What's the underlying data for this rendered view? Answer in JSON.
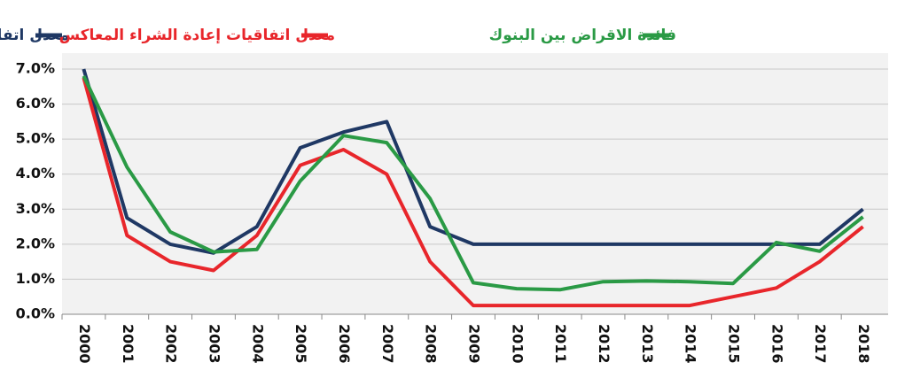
{
  "chart_data": {
    "type": "line",
    "categories": [
      "2000",
      "2001",
      "2002",
      "2003",
      "2004",
      "2005",
      "2006",
      "2007",
      "2008",
      "2009",
      "2010",
      "2011",
      "2012",
      "2013",
      "2014",
      "2015",
      "2016",
      "2017",
      "2018"
    ],
    "series": [
      {
        "name": "معدل اتفاقيات إعادة الشراء",
        "color": "#1f3864",
        "values": [
          7.0,
          2.75,
          2.0,
          1.75,
          2.5,
          4.75,
          5.2,
          5.5,
          2.5,
          2.0,
          2.0,
          2.0,
          2.0,
          2.0,
          2.0,
          2.0,
          2.0,
          2.0,
          3.0
        ]
      },
      {
        "name": "معدل اتفاقيات إعادة الشراء المعاكس",
        "color": "#e8262b",
        "values": [
          6.75,
          2.25,
          1.5,
          1.25,
          2.25,
          4.25,
          4.7,
          4.0,
          1.5,
          0.25,
          0.25,
          0.25,
          0.25,
          0.25,
          0.25,
          0.5,
          0.75,
          1.5,
          2.5
        ]
      },
      {
        "name": "فائدة الاقراض بين البنوك",
        "color": "#2a9a45",
        "values": [
          6.8,
          4.2,
          2.35,
          1.78,
          1.85,
          3.8,
          5.1,
          4.9,
          3.3,
          0.9,
          0.73,
          0.7,
          0.93,
          0.95,
          0.93,
          0.88,
          2.05,
          1.8,
          2.78
        ]
      }
    ],
    "ylim": [
      0,
      7
    ],
    "yticks": [
      {
        "value": 0,
        "label": "0.0%"
      },
      {
        "value": 1,
        "label": "1.0%"
      },
      {
        "value": 2,
        "label": "2.0%"
      },
      {
        "value": 3,
        "label": "3.0%"
      },
      {
        "value": 4,
        "label": "4.0%"
      },
      {
        "value": 5,
        "label": "5.0%"
      },
      {
        "value": 6,
        "label": "6.0%"
      },
      {
        "value": 7,
        "label": "7.0%"
      }
    ],
    "grid": true
  }
}
